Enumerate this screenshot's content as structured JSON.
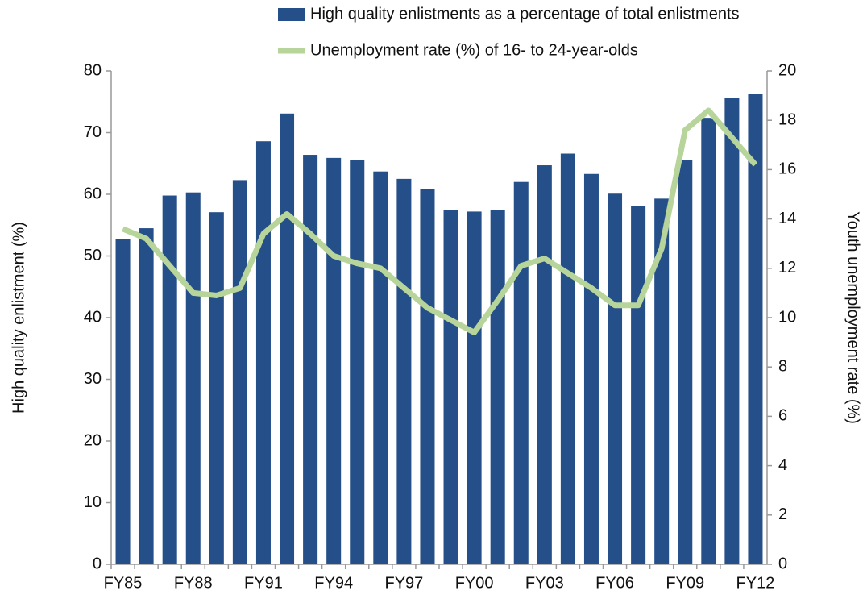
{
  "chart_data": {
    "type": "bar_line",
    "ylabel": "High quality enlistment (%)",
    "y2label": "Youth unemployment rate (%)",
    "categories": [
      "FY85",
      null,
      null,
      "FY88",
      null,
      null,
      "FY91",
      null,
      null,
      "FY94",
      null,
      null,
      "FY97",
      null,
      null,
      "FY00",
      null,
      null,
      "FY03",
      null,
      null,
      "FY06",
      null,
      null,
      "FY09",
      null,
      null,
      "FY12"
    ],
    "series": [
      {
        "name": "High quality enlistments as a percentage of total enlistments",
        "type": "bar",
        "color": "#254f89",
        "values": [
          52.7,
          54.5,
          59.8,
          60.3,
          57.1,
          62.3,
          68.6,
          73.1,
          66.4,
          65.9,
          65.6,
          63.7,
          62.5,
          60.8,
          57.4,
          57.2,
          57.4,
          62.0,
          64.7,
          66.6,
          63.3,
          60.1,
          58.1,
          59.3,
          65.6,
          72.4,
          75.6,
          76.3
        ]
      },
      {
        "name": "Unemployment rate (%) of 16- to 24-year-olds",
        "type": "line",
        "axis": "y2",
        "color": "#b7d49a",
        "values": [
          13.6,
          13.2,
          12.1,
          11.0,
          10.9,
          11.2,
          13.4,
          14.2,
          13.4,
          12.5,
          12.2,
          12.0,
          11.2,
          10.4,
          9.9,
          9.4,
          10.7,
          12.1,
          12.4,
          11.8,
          11.2,
          10.5,
          10.5,
          12.8,
          17.6,
          18.4,
          17.3,
          16.2
        ]
      }
    ],
    "ylim": [
      0,
      80
    ],
    "yticks": [
      0,
      10,
      20,
      30,
      40,
      50,
      60,
      70,
      80
    ],
    "y2lim": [
      0,
      20
    ],
    "y2ticks": [
      0,
      2,
      4,
      6,
      8,
      10,
      12,
      14,
      16,
      18,
      20
    ]
  }
}
